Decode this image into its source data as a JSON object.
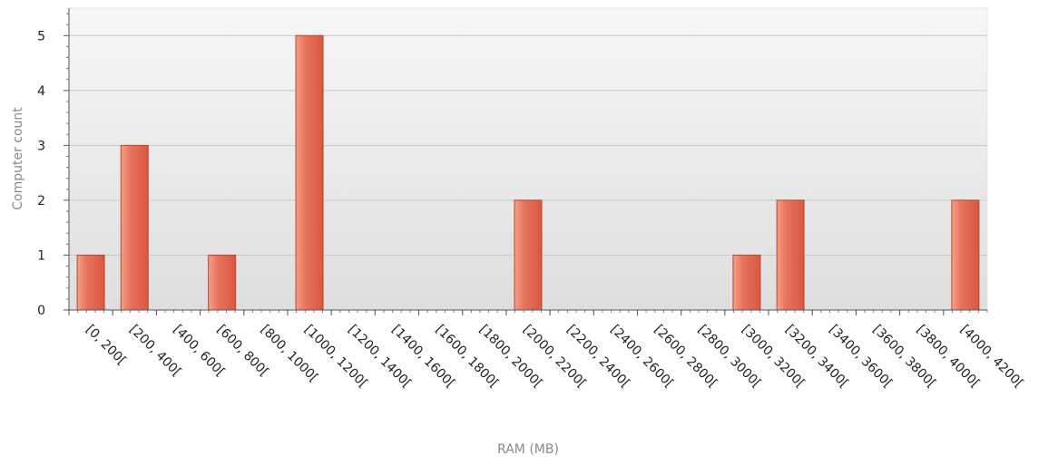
{
  "chart_data": {
    "type": "bar",
    "title": "",
    "xlabel": "RAM (MB)",
    "ylabel": "Computer count",
    "ylim": [
      0,
      5.5
    ],
    "yticks": [
      0,
      1,
      2,
      3,
      4,
      5
    ],
    "grid": true,
    "legend": "none",
    "categories": [
      "[0, 200[",
      "[200, 400[",
      "[400, 600[",
      "[600, 800[",
      "[800, 1000[",
      "[1000, 1200[",
      "[1200, 1400[",
      "[1400, 1600[",
      "[1600, 1800[",
      "[1800, 2000[",
      "[2000, 2200[",
      "[2200, 2400[",
      "[2400, 2600[",
      "[2600, 2800[",
      "[2800, 3000[",
      "[3000, 3200[",
      "[3200, 3400[",
      "[3400, 3600[",
      "[3600, 3800[",
      "[3800, 4000[",
      "[4000, 4200["
    ],
    "values": [
      1,
      3,
      0,
      1,
      0,
      5,
      0,
      0,
      0,
      0,
      2,
      0,
      0,
      0,
      0,
      1,
      2,
      0,
      0,
      0,
      2
    ],
    "colors": {
      "bar": "#e8735c",
      "bar_edge": "#b84632",
      "plot_bg_top": "#f7f7f7",
      "plot_bg_bottom": "#dedede",
      "grid": "#c8c8c8"
    }
  }
}
